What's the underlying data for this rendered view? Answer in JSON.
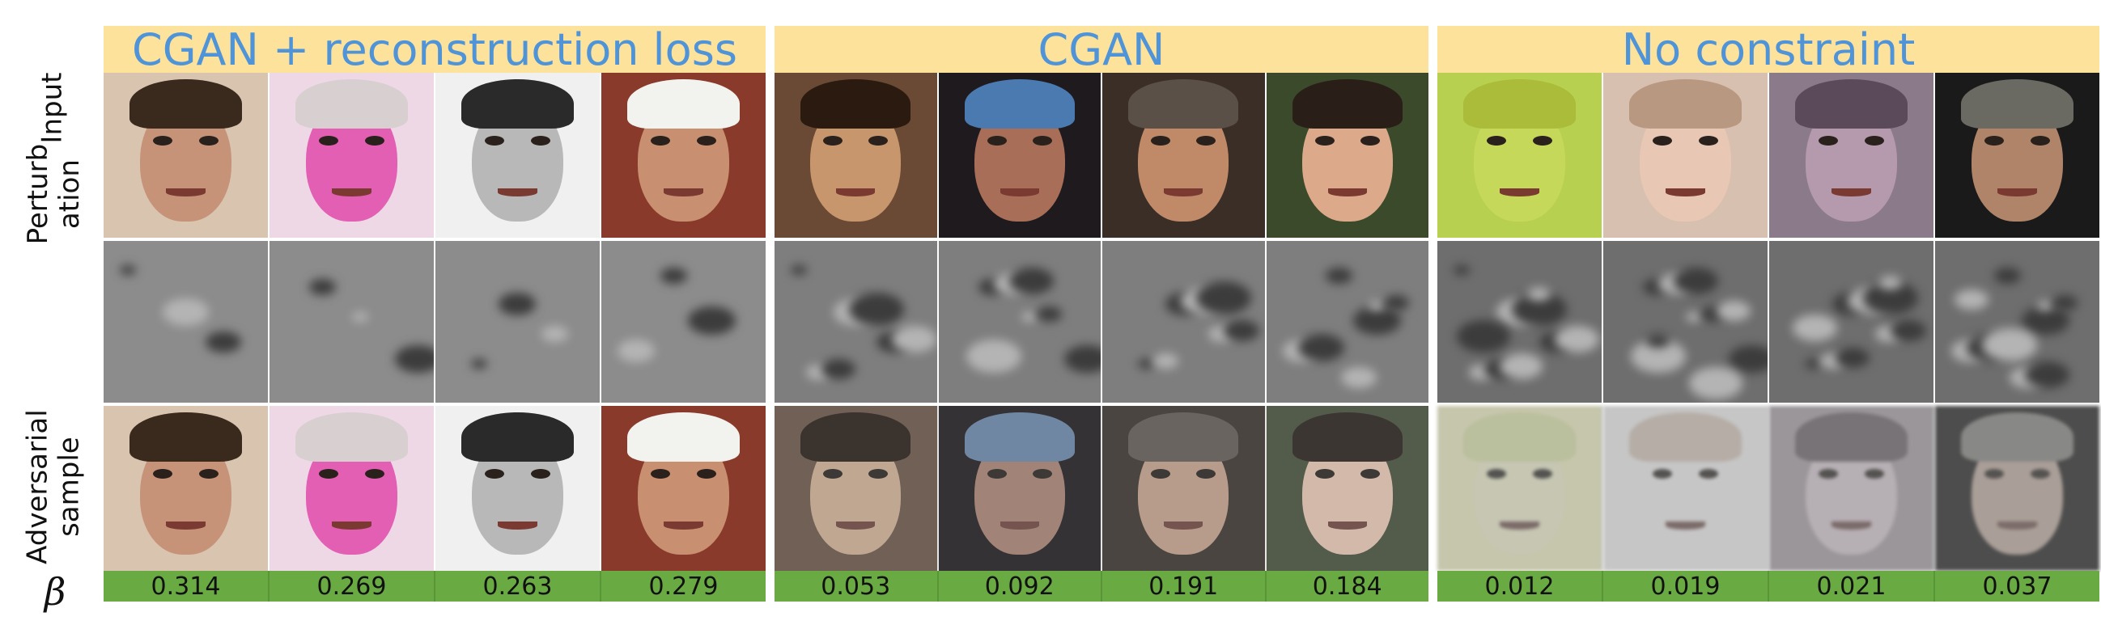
{
  "row_labels": {
    "input": "Input",
    "perturbation": [
      "Perturb",
      "ation"
    ],
    "adversarial": [
      "Adversarial",
      "sample"
    ],
    "beta_symbol": "β"
  },
  "groups": [
    {
      "title": "CGAN + reconstruction loss",
      "betas": [
        "0.314",
        "0.269",
        "0.263",
        "0.279"
      ],
      "inputs": [
        {
          "bg": "#d9c4b0",
          "skin": "#c79378",
          "hair": "#3a2a1e"
        },
        {
          "bg": "#efd8e6",
          "skin": "#e25fb4",
          "hair": "#d8d0d0"
        },
        {
          "bg": "#f0f0f0",
          "skin": "#b8b8b8",
          "hair": "#2a2a2a"
        },
        {
          "bg": "#8a3a2a",
          "skin": "#c89070",
          "hair": "#f2f2ee"
        }
      ],
      "adv_tint": "none"
    },
    {
      "title": "CGAN",
      "betas": [
        "0.053",
        "0.092",
        "0.191",
        "0.184"
      ],
      "inputs": [
        {
          "bg": "#6a4a34",
          "skin": "#c8966c",
          "hair": "#2a1a10"
        },
        {
          "bg": "#1e1a1e",
          "skin": "#a86e58",
          "hair": "#4a7ab0"
        },
        {
          "bg": "#3a2e26",
          "skin": "#c08a68",
          "hair": "#5a5048"
        },
        {
          "bg": "#3a4a2a",
          "skin": "#dcaa8a",
          "hair": "#2a1e18"
        }
      ],
      "adv_tint": "washed"
    },
    {
      "title": "No constraint",
      "betas": [
        "0.012",
        "0.019",
        "0.021",
        "0.037"
      ],
      "inputs": [
        {
          "bg": "#b8d050",
          "skin": "#c6d85a",
          "hair": "#aabc3a"
        },
        {
          "bg": "#d8c0b0",
          "skin": "#e8c8b4",
          "hair": "#b89880"
        },
        {
          "bg": "#8a7a8a",
          "skin": "#b49aac",
          "hair": "#5a4a5a"
        },
        {
          "bg": "#1a1a1a",
          "skin": "#b08468",
          "hair": "#6a6a62"
        }
      ],
      "adv_tint": "noise"
    }
  ]
}
